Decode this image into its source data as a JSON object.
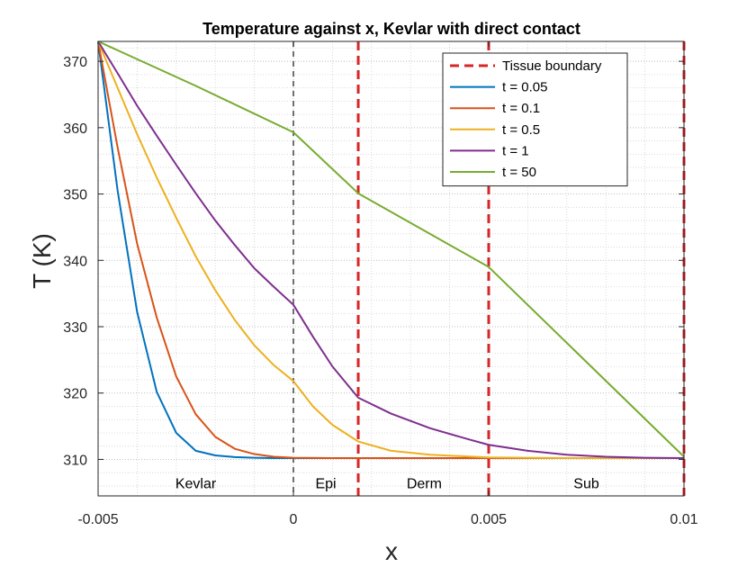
{
  "chart_data": {
    "type": "line",
    "title": "Temperature against x, Kevlar with direct contact",
    "xlabel": "x",
    "ylabel": "T (K)",
    "xlim": [
      -0.005,
      0.01
    ],
    "ylim": [
      304.5,
      373
    ],
    "x_ticks": [
      -0.005,
      0,
      0.005,
      0.01
    ],
    "x_tick_labels": [
      "-0.005",
      "0",
      "0.005",
      "0.01"
    ],
    "y_ticks": [
      310,
      320,
      330,
      340,
      350,
      360,
      370
    ],
    "y_tick_labels": [
      "310",
      "320",
      "330",
      "340",
      "350",
      "360",
      "370"
    ],
    "grid": true,
    "minor_grid": true,
    "legend_position": "top-right",
    "boundaries": [
      {
        "name": "Kevlar/Epi",
        "x": 0,
        "style": "dashed",
        "color": "#404040"
      },
      {
        "name": "Tissue boundary",
        "x": 0.00166,
        "style": "dashed",
        "color": "#d62728"
      },
      {
        "name": "Tissue boundary",
        "x": 0.005,
        "style": "dashed",
        "color": "#d62728"
      },
      {
        "name": "Tissue boundary",
        "x": 0.01,
        "style": "dashed",
        "color": "#d62728"
      }
    ],
    "legend_boundary_label": "Tissue boundary",
    "region_labels": [
      {
        "text": "Kevlar",
        "x": -0.0025,
        "y": 306.5
      },
      {
        "text": "Epi",
        "x": 0.00083,
        "y": 306.5
      },
      {
        "text": "Derm",
        "x": 0.00335,
        "y": 306.5
      },
      {
        "text": "Sub",
        "x": 0.0075,
        "y": 306.5
      }
    ],
    "series": [
      {
        "name": "t = 0.05",
        "color": "#0072BD",
        "x": [
          -0.005,
          -0.0045,
          -0.004,
          -0.0035,
          -0.003,
          -0.0025,
          -0.002,
          -0.0015,
          -0.001,
          -0.0005,
          0,
          0.001,
          0.002,
          0.003,
          0.004,
          0.005,
          0.006,
          0.007,
          0.008,
          0.009,
          0.01
        ],
        "y": [
          373,
          350.5,
          332.2,
          320.2,
          314.0,
          311.3,
          310.6,
          310.35,
          310.25,
          310.2,
          310.2,
          310.2,
          310.2,
          310.2,
          310.2,
          310.2,
          310.2,
          310.2,
          310.2,
          310.2,
          310.2
        ]
      },
      {
        "name": "t = 0.1",
        "color": "#D95319",
        "x": [
          -0.005,
          -0.0045,
          -0.004,
          -0.0035,
          -0.003,
          -0.0025,
          -0.002,
          -0.0015,
          -0.001,
          -0.0005,
          0,
          0.001,
          0.002,
          0.003,
          0.004,
          0.005,
          0.006,
          0.007,
          0.008,
          0.009,
          0.01
        ],
        "y": [
          373,
          357.0,
          342.5,
          331.4,
          322.5,
          316.8,
          313.4,
          311.6,
          310.8,
          310.4,
          310.25,
          310.2,
          310.2,
          310.2,
          310.2,
          310.2,
          310.2,
          310.2,
          310.2,
          310.2,
          310.2
        ]
      },
      {
        "name": "t = 0.5",
        "color": "#EDB120",
        "x": [
          -0.005,
          -0.0045,
          -0.004,
          -0.0035,
          -0.003,
          -0.0025,
          -0.002,
          -0.0015,
          -0.001,
          -0.0005,
          0,
          0.0005,
          0.001,
          0.0015,
          0.00166,
          0.0025,
          0.0035,
          0.005,
          0.006,
          0.007,
          0.008,
          0.009,
          0.01
        ],
        "y": [
          373,
          366.0,
          359.0,
          352.5,
          346.4,
          340.6,
          335.5,
          331.0,
          327.2,
          324.2,
          321.8,
          318.0,
          315.2,
          313.3,
          312.7,
          311.3,
          310.7,
          310.3,
          310.25,
          310.2,
          310.2,
          310.2,
          310.2
        ]
      },
      {
        "name": "t = 1",
        "color": "#7E2F8E",
        "x": [
          -0.005,
          -0.0045,
          -0.004,
          -0.0035,
          -0.003,
          -0.0025,
          -0.002,
          -0.0015,
          -0.001,
          -0.0005,
          0,
          0.0005,
          0.001,
          0.00166,
          0.0025,
          0.0035,
          0.0045,
          0.005,
          0.006,
          0.007,
          0.008,
          0.009,
          0.01
        ],
        "y": [
          373,
          368.2,
          363.3,
          358.8,
          354.4,
          350.1,
          346.0,
          342.3,
          338.8,
          336.0,
          333.3,
          328.5,
          324.0,
          319.3,
          316.9,
          314.7,
          313.0,
          312.2,
          311.3,
          310.7,
          310.4,
          310.25,
          310.2
        ]
      },
      {
        "name": "t = 50",
        "color": "#77AC30",
        "x": [
          -0.005,
          -0.0025,
          0,
          0.00166,
          0.005,
          0.01
        ],
        "y": [
          373,
          366.3,
          359.3,
          350.1,
          339.0,
          310.4
        ]
      }
    ]
  }
}
